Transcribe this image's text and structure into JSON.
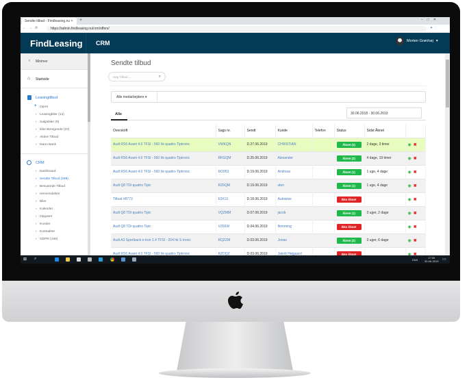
{
  "browser": {
    "tab_title": "Sendte tilbud - Findleasing.nu",
    "url": "https://admin.findleasing.nu/crm/offers/"
  },
  "header": {
    "logo": "FindLeasing",
    "section": "CRM",
    "user": "Morten Grønhøj"
  },
  "sidebar": {
    "minimize": "Minimer",
    "home": "Startside",
    "leasing": {
      "title": "Leasingtilbud",
      "create": "Opret",
      "items": [
        "Leasingbiler (14)",
        "Salgsbiler (9)",
        "Ikke Beregnede (22)",
        "Aktive Tilbud",
        "Ikano Bank"
      ]
    },
    "crm": {
      "title": "CRM",
      "items": [
        "Dashboard",
        "Sendte Tilbud (298)",
        "Besvarede Tilbud",
        "Henvendelser",
        "Biler",
        "Kalender",
        "Opgaver",
        "Kunder",
        "Kontrakter",
        "GDPR (160)"
      ],
      "active_index": 1
    }
  },
  "main": {
    "title": "Sendte tilbud",
    "search_placeholder": "Søg Tilbud ...",
    "employee_filter": "Alle medarbejdere",
    "tab": "Alle",
    "date_range": "30.06.2018 - 30.06.2019",
    "columns": [
      "Overskrift",
      "Sags nr.",
      "Sendt",
      "Kunde",
      "Telefon",
      "Status",
      "Sidst Åbnet",
      ""
    ],
    "rows": [
      {
        "title": "Audi RS6 Avant 4.0 TFSI - 560 hk quattro Tiptronic",
        "case": "VWKQN",
        "sent": "D.27.06.2019",
        "customer": "CHRISTIAN",
        "phone": "",
        "status": "Åbnet (2)",
        "opened": true,
        "last": "2 dage, 3 timer",
        "highlight": true
      },
      {
        "title": "Audi RS6 Avant 4.0 TFSI - 560 hk quattro Tiptronic",
        "case": "RKGQM",
        "sent": "D.25.06.2019",
        "customer": "Alexander",
        "phone": "",
        "status": "Åbnet (2)",
        "opened": true,
        "last": "4 dage, 19 timer"
      },
      {
        "title": "Audi RS6 Avant 4.0 TFSI - 560 hk quattro Tiptronic",
        "case": "RO953",
        "sent": "D.19.06.2019",
        "customer": "Andreas",
        "phone": "",
        "status": "Åbnet (1)",
        "opened": true,
        "last": "1 uge, 4 dage"
      },
      {
        "title": "Audi Q8 TDi quattro Tiptr.",
        "case": "RZ6QM",
        "sent": "D.19.06.2019",
        "customer": "sten",
        "phone": "",
        "status": "Åbnet (1)",
        "opened": true,
        "last": "1 uge, 4 dage"
      },
      {
        "title": "Tilbud #8773",
        "case": "E9X3J",
        "sent": "D.18.06.2019",
        "customer": "Autowise",
        "phone": "",
        "status": "Ikke Åbnet",
        "opened": false,
        "last": ""
      },
      {
        "title": "Audi Q8 TDi quattro Tiptr.",
        "case": "VQZMM",
        "sent": "D.07.06.2019",
        "customer": "jacob",
        "phone": "",
        "status": "Åbnet (1)",
        "opened": true,
        "last": "3 uger, 2 dage"
      },
      {
        "title": "Audi Q8 TDi quattro Tiptr.",
        "case": "VZ66W",
        "sent": "D.04.06.2019",
        "customer": "flemming",
        "phone": "",
        "status": "Ikke Åbnet",
        "opened": false,
        "last": ""
      },
      {
        "title": "Audi A3 Sportback e-tron 1.4 TFSI - 204 hk S tronic",
        "case": "RQZZM",
        "sent": "D.03.06.2019",
        "customer": "Jonas",
        "phone": "",
        "status": "Åbnet (2)",
        "opened": true,
        "last": "3 uger, 6 dage"
      },
      {
        "title": "Audi RS6 Avant 4.0 TFSI - 560 hk quattro Tiptronic",
        "case": "RZDQZ",
        "sent": "D.03.06.2019",
        "customer": "Jakob Højgaard",
        "phone": "",
        "status": "Ikke Åbnet",
        "opened": false,
        "last": ""
      }
    ]
  },
  "taskbar": {
    "time": "17:06",
    "date": "30-06-2019",
    "lang": "DAN"
  },
  "colors": {
    "header": "#033a55",
    "link": "#4a7fc1",
    "opened": "#1fb84a",
    "not_opened": "#e02424",
    "highlight": "#e9fcc0"
  }
}
